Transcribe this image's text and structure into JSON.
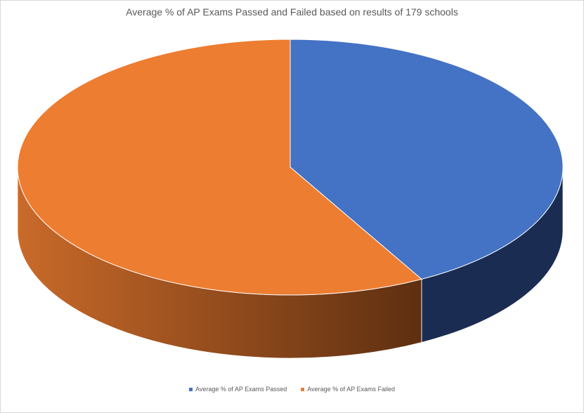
{
  "colors": {
    "passed_top": "#4472C4",
    "passed_side": "#1A2C52",
    "failed_top": "#ED7D31",
    "failed_side_light": "#C96A2A",
    "failed_side_dark": "#5E2F10"
  },
  "chart_data": {
    "type": "pie",
    "style": "3d",
    "title": "Average % of AP Exams Passed and Failed based on results of 179 schools",
    "categories": [
      "Average % of AP Exams Passed",
      "Average % of AP Exams Failed"
    ],
    "values": [
      42,
      58
    ],
    "legend_position": "bottom"
  }
}
